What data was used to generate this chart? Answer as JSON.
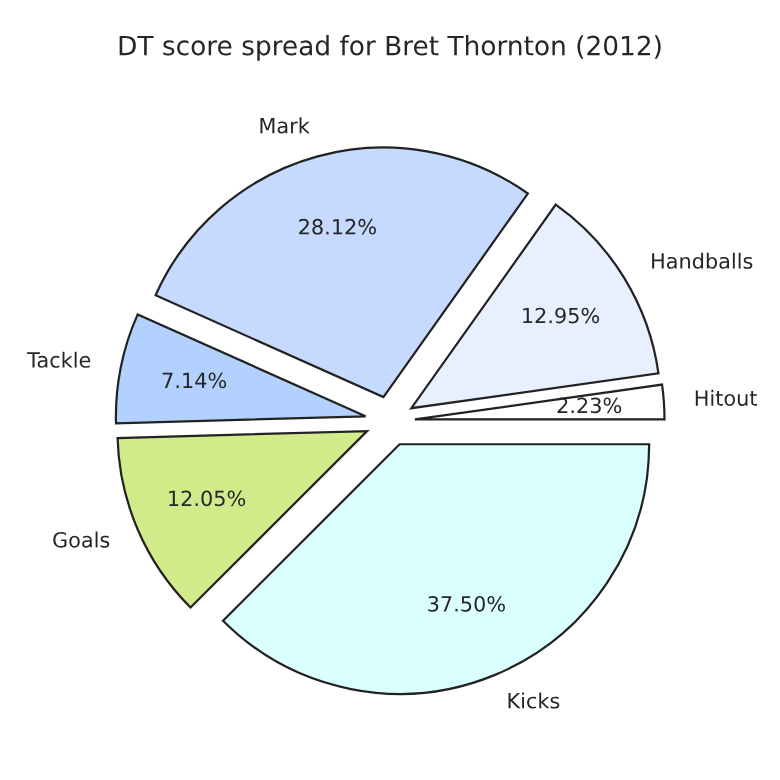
{
  "chart_data": {
    "type": "pie",
    "title": "DT score spread for Bret Thornton (2012)",
    "categories": [
      "Hitout",
      "Handballs",
      "Mark",
      "Tackle",
      "Goals",
      "Kicks"
    ],
    "values": [
      2.23,
      12.95,
      28.12,
      7.14,
      12.05,
      37.5
    ],
    "value_labels": [
      "2.23%",
      "12.95%",
      "28.12%",
      "7.14%",
      "12.05%",
      "37.50%"
    ],
    "colors": [
      "#ffffff",
      "#e8f0ff",
      "#c6d9ff",
      "#b3d1ff",
      "#d1eb8a",
      "#d9ffff"
    ]
  }
}
